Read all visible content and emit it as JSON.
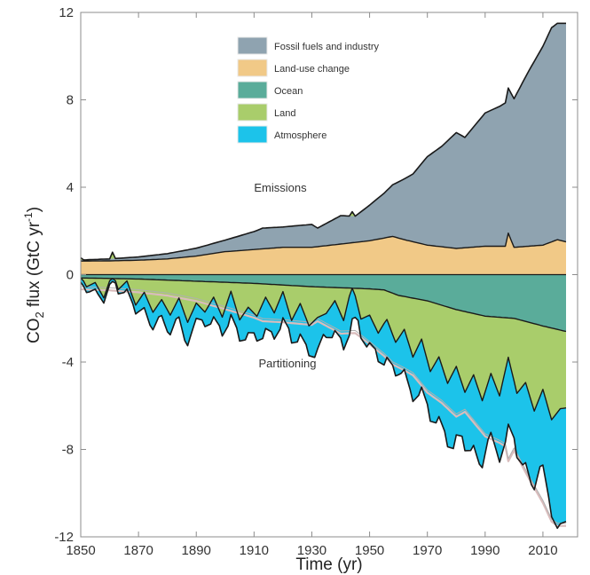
{
  "chart_data": {
    "type": "area",
    "title": "",
    "xlabel": "Time (yr)",
    "ylabel_parts": {
      "prefix": "CO",
      "subscript": "2",
      "middle": " flux (GtC yr",
      "superscript": "-1",
      "suffix": ")"
    },
    "xlim": [
      1850,
      2022
    ],
    "ylim": [
      -12,
      12
    ],
    "xticks": [
      1850,
      1870,
      1890,
      1910,
      1930,
      1950,
      1970,
      1990,
      2010
    ],
    "yticks": [
      12,
      8,
      4,
      0,
      -4,
      -8,
      -12
    ],
    "ytick_labels": [
      "12",
      "8",
      "4",
      "0",
      "-4",
      "-8",
      "-12"
    ],
    "xtick_labels": [
      "1850",
      "1870",
      "1890",
      "1910",
      "1930",
      "1950",
      "1970",
      "1990",
      "2010"
    ],
    "grid": false,
    "legend_position": "top-center",
    "annotations": [
      "Emissions",
      "Partitioning"
    ],
    "colors": {
      "fossil": "#8fa3b0",
      "luc": "#f1c987",
      "ocean": "#5aac9a",
      "land": "#a9cd6b",
      "atmosphere": "#1cc3ea",
      "outline": "#1a1a1a",
      "mirror_line": "#d9bcbc",
      "grey_line": "#b0b0b0"
    },
    "series": [
      {
        "name": "Fossil fuels and industry",
        "key": "fossil",
        "x": [
          1850,
          1860,
          1870,
          1880,
          1890,
          1900,
          1910,
          1913,
          1920,
          1930,
          1932,
          1940,
          1945,
          1950,
          1955,
          1960,
          1965,
          1970,
          1975,
          1980,
          1983,
          1990,
          1995,
          2000,
          2005,
          2010,
          2013,
          2015,
          2018
        ],
        "values": [
          0.05,
          0.09,
          0.15,
          0.24,
          0.36,
          0.53,
          0.82,
          0.95,
          0.93,
          1.05,
          0.85,
          1.3,
          1.2,
          1.63,
          2.05,
          2.57,
          3.1,
          4.05,
          4.6,
          5.3,
          5.05,
          6.1,
          6.4,
          6.8,
          8.0,
          9.1,
          9.8,
          9.9,
          10.0
        ]
      },
      {
        "name": "Land-use change",
        "key": "luc",
        "x": [
          1850,
          1860,
          1870,
          1880,
          1890,
          1900,
          1910,
          1920,
          1930,
          1940,
          1950,
          1958,
          1962,
          1970,
          1980,
          1990,
          1997,
          1998,
          2000,
          2005,
          2010,
          2015,
          2018
        ],
        "values": [
          0.62,
          0.63,
          0.66,
          0.72,
          0.85,
          1.05,
          1.15,
          1.25,
          1.25,
          1.4,
          1.55,
          1.75,
          1.6,
          1.35,
          1.2,
          1.3,
          1.3,
          1.9,
          1.25,
          1.3,
          1.35,
          1.6,
          1.5
        ]
      },
      {
        "name": "Ocean",
        "key": "ocean",
        "x": [
          1850,
          1870,
          1890,
          1910,
          1930,
          1950,
          1955,
          1960,
          1970,
          1980,
          1990,
          2000,
          2010,
          2018
        ],
        "values": [
          -0.15,
          -0.2,
          -0.3,
          -0.4,
          -0.55,
          -0.65,
          -0.7,
          -0.95,
          -1.2,
          -1.6,
          -1.9,
          -2.0,
          -2.35,
          -2.6
        ]
      },
      {
        "name": "Land",
        "key": "land",
        "x": [
          1850,
          1852,
          1855,
          1858,
          1861,
          1863,
          1866,
          1869,
          1872,
          1875,
          1878,
          1881,
          1884,
          1887,
          1890,
          1893,
          1896,
          1899,
          1902,
          1905,
          1908,
          1911,
          1914,
          1917,
          1920,
          1923,
          1926,
          1929,
          1932,
          1935,
          1938,
          1941,
          1944,
          1947,
          1950,
          1953,
          1956,
          1959,
          1962,
          1965,
          1968,
          1971,
          1974,
          1977,
          1980,
          1983,
          1986,
          1989,
          1992,
          1995,
          1998,
          2001,
          2004,
          2007,
          2010,
          2013,
          2016,
          2018
        ],
        "values": [
          0.1,
          -0.4,
          -0.2,
          -0.9,
          0.3,
          -0.5,
          -0.1,
          -1.2,
          -0.6,
          -1.5,
          -0.9,
          -1.6,
          -0.8,
          -1.9,
          -1.0,
          -1.4,
          -0.7,
          -1.6,
          -0.4,
          -1.7,
          -1.1,
          -1.5,
          -0.6,
          -1.3,
          -0.3,
          -1.6,
          -0.8,
          -1.8,
          -1.4,
          -1.2,
          -0.6,
          -1.5,
          0.2,
          -1.4,
          -1.2,
          -2.0,
          -1.3,
          -2.2,
          -1.5,
          -2.7,
          -1.8,
          -3.2,
          -2.4,
          -3.5,
          -2.6,
          -3.7,
          -2.8,
          -3.9,
          -2.6,
          -3.6,
          -1.8,
          -3.4,
          -2.8,
          -4.0,
          -2.9,
          -4.2,
          -3.6,
          -3.5
        ]
      },
      {
        "name": "Atmosphere",
        "key": "atmosphere",
        "x": [
          1850,
          1853,
          1856,
          1859,
          1862,
          1865,
          1868,
          1871,
          1874,
          1877,
          1880,
          1883,
          1886,
          1889,
          1892,
          1895,
          1898,
          1901,
          1904,
          1907,
          1910,
          1913,
          1916,
          1919,
          1922,
          1925,
          1928,
          1931,
          1934,
          1937,
          1940,
          1943,
          1946,
          1949,
          1952,
          1955,
          1958,
          1961,
          1964,
          1967,
          1970,
          1973,
          1976,
          1979,
          1982,
          1985,
          1988,
          1991,
          1994,
          1997,
          2000,
          2003,
          2006,
          2009,
          2012,
          2015,
          2018
        ],
        "values": [
          -0.2,
          -0.3,
          -0.3,
          -0.2,
          -0.1,
          -0.4,
          -0.3,
          -0.6,
          -0.9,
          -0.6,
          -1.0,
          -0.7,
          -1.2,
          -0.8,
          -0.5,
          -1.0,
          -0.7,
          -1.2,
          -0.8,
          -1.3,
          -0.9,
          -1.6,
          -1.1,
          -1.4,
          -0.8,
          -1.5,
          -1.2,
          -1.7,
          -0.9,
          -1.5,
          -1.1,
          -1.8,
          -0.6,
          -1.4,
          -1.0,
          -1.9,
          -1.4,
          -1.8,
          -1.9,
          -2.3,
          -2.0,
          -2.8,
          -2.6,
          -3.5,
          -2.4,
          -3.2,
          -3.3,
          -2.6,
          -2.9,
          -3.3,
          -2.6,
          -3.6,
          -3.8,
          -3.2,
          -4.0,
          -5.3,
          -5.2
        ]
      }
    ]
  },
  "legend": {
    "items": [
      {
        "label": "Fossil fuels and industry",
        "key": "fossil"
      },
      {
        "label": "Land-use change",
        "key": "luc"
      },
      {
        "label": "Ocean",
        "key": "ocean"
      },
      {
        "label": "Land",
        "key": "land"
      },
      {
        "label": "Atmosphere",
        "key": "atmosphere"
      }
    ]
  }
}
